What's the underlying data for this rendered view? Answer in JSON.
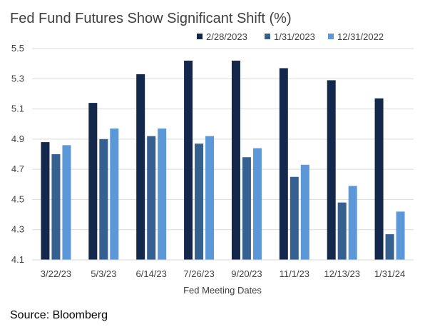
{
  "source_text": "Source: Bloomberg",
  "colors": {
    "series": [
      "#13284a",
      "#35608f",
      "#5c98d8"
    ],
    "grid": "#d9d9d9",
    "text": "#404040"
  },
  "chart_data": {
    "type": "bar",
    "title": "Fed Fund Futures Show Significant Shift (%)",
    "xlabel": "Fed Meeting Dates",
    "ylabel": "",
    "ylim": [
      4.1,
      5.5
    ],
    "yticks": [
      "4.1",
      "4.3",
      "4.5",
      "4.7",
      "4.9",
      "5.1",
      "5.3",
      "5.5"
    ],
    "grid": true,
    "legend_position": "top-right",
    "categories": [
      "3/22/23",
      "5/3/23",
      "6/14/23",
      "7/26/23",
      "9/20/23",
      "11/1/23",
      "12/13/23",
      "1/31/24"
    ],
    "series": [
      {
        "name": "2/28/2023",
        "values": [
          4.88,
          5.14,
          5.33,
          5.42,
          5.42,
          5.37,
          5.29,
          5.17
        ]
      },
      {
        "name": "1/31/2023",
        "values": [
          4.8,
          4.9,
          4.92,
          4.87,
          4.78,
          4.65,
          4.48,
          4.27
        ]
      },
      {
        "name": "12/31/2022",
        "values": [
          4.86,
          4.97,
          4.97,
          4.92,
          4.84,
          4.73,
          4.59,
          4.42
        ]
      }
    ]
  }
}
